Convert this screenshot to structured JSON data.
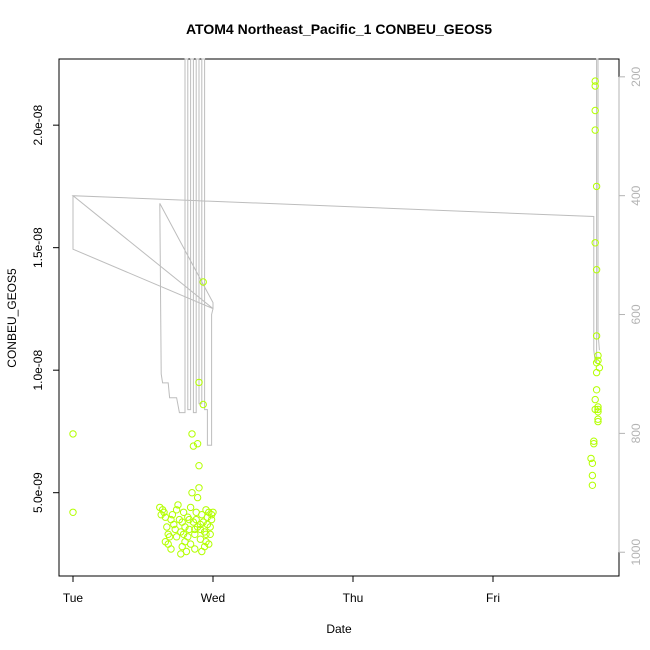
{
  "chart_data": {
    "type": "scatter",
    "title": "ATOM4 Northeast_Pacific_1 CONBEU_GEOS5",
    "xlabel": "Date",
    "ylabel": "CONBEU_GEOS5",
    "x_ticks": [
      "Tue",
      "Wed",
      "Thu",
      "Fri"
    ],
    "y_ticks": [
      "5.0e-09",
      "1.0e-08",
      "1.5e-08",
      "2.0e-08"
    ],
    "y_tick_values": [
      5e-09,
      1e-08,
      1.5e-08,
      2e-08
    ],
    "ylim": [
      1.6e-09,
      2.27e-08
    ],
    "xlim_days": [
      -0.1,
      3.9
    ],
    "right_axis": {
      "ticks": [
        "200",
        "400",
        "600",
        "800",
        "1000"
      ],
      "values": [
        200,
        400,
        600,
        800,
        1000
      ],
      "reversed": true,
      "lim": [
        170,
        1040
      ],
      "color": "#b3b3b3"
    },
    "grid": false,
    "legend": "none",
    "colors": {
      "points": "#b3ff00",
      "line": "#bdbdbd",
      "axes": "#000000"
    },
    "series": [
      {
        "kind": "points",
        "points": [
          [
            0.0,
            7.4e-09
          ],
          [
            0.0,
            4.2e-09
          ],
          [
            0.62,
            4.4e-09
          ],
          [
            0.63,
            4.1e-09
          ],
          [
            0.64,
            4.3e-09
          ],
          [
            0.65,
            4.2e-09
          ],
          [
            0.66,
            4e-09
          ],
          [
            0.67,
            3.6e-09
          ],
          [
            0.68,
            3.3e-09
          ],
          [
            0.68,
            2.9e-09
          ],
          [
            0.69,
            3.2e-09
          ],
          [
            0.7,
            3.9e-09
          ],
          [
            0.71,
            4.1e-09
          ],
          [
            0.72,
            3.7e-09
          ],
          [
            0.73,
            3.5e-09
          ],
          [
            0.74,
            4.3e-09
          ],
          [
            0.75,
            4.5e-09
          ],
          [
            0.76,
            3.9e-09
          ],
          [
            0.77,
            3.4e-09
          ],
          [
            0.77,
            2.5e-09
          ],
          [
            0.78,
            2.8e-09
          ],
          [
            0.78,
            3.8e-09
          ],
          [
            0.79,
            4.2e-09
          ],
          [
            0.8,
            3.6e-09
          ],
          [
            0.8,
            3e-09
          ],
          [
            0.81,
            2.6e-09
          ],
          [
            0.82,
            3.2e-09
          ],
          [
            0.82,
            4e-09
          ],
          [
            0.83,
            3.5e-09
          ],
          [
            0.84,
            2.9e-09
          ],
          [
            0.84,
            4.4e-09
          ],
          [
            0.85,
            5e-09
          ],
          [
            0.85,
            7.4e-09
          ],
          [
            0.86,
            6.9e-09
          ],
          [
            0.86,
            3.8e-09
          ],
          [
            0.87,
            3.3e-09
          ],
          [
            0.87,
            2.7e-09
          ],
          [
            0.88,
            3.9e-09
          ],
          [
            0.88,
            4.2e-09
          ],
          [
            0.89,
            3.6e-09
          ],
          [
            0.89,
            4.8e-09
          ],
          [
            0.89,
            7e-09
          ],
          [
            0.9,
            6.1e-09
          ],
          [
            0.9,
            9.5e-09
          ],
          [
            0.9,
            5.2e-09
          ],
          [
            0.91,
            3.7e-09
          ],
          [
            0.91,
            3.1e-09
          ],
          [
            0.92,
            2.6e-09
          ],
          [
            0.92,
            4.1e-09
          ],
          [
            0.93,
            3.8e-09
          ],
          [
            0.93,
            1.36e-08
          ],
          [
            0.93,
            8.6e-09
          ],
          [
            0.94,
            3.4e-09
          ],
          [
            0.94,
            2.8e-09
          ],
          [
            0.95,
            4.3e-09
          ],
          [
            0.95,
            3e-09
          ],
          [
            0.96,
            3.7e-09
          ],
          [
            0.96,
            4e-09
          ],
          [
            0.97,
            2.9e-09
          ],
          [
            0.97,
            4.2e-09
          ],
          [
            0.98,
            3.3e-09
          ],
          [
            0.98,
            3.6e-09
          ],
          [
            0.99,
            4.1e-09
          ],
          [
            0.99,
            3.9e-09
          ],
          [
            1.0,
            4.2e-09
          ],
          [
            0.66,
            3e-09
          ],
          [
            0.7,
            2.7e-09
          ],
          [
            0.74,
            3.2e-09
          ],
          [
            0.79,
            3.3e-09
          ],
          [
            0.83,
            3.9e-09
          ],
          [
            0.87,
            3.5e-09
          ],
          [
            0.91,
            3.5e-09
          ],
          [
            0.95,
            3.3e-09
          ],
          [
            3.7,
            6.4e-09
          ],
          [
            3.71,
            5.7e-09
          ],
          [
            3.71,
            6.2e-09
          ],
          [
            3.71,
            5.3e-09
          ],
          [
            3.72,
            7e-09
          ],
          [
            3.72,
            7.1e-09
          ],
          [
            3.73,
            8.4e-09
          ],
          [
            3.73,
            8.8e-09
          ],
          [
            3.73,
            1.52e-08
          ],
          [
            3.73,
            2.06e-08
          ],
          [
            3.73,
            2.18e-08
          ],
          [
            3.73,
            2.16e-08
          ],
          [
            3.73,
            1.98e-08
          ],
          [
            3.74,
            1.75e-08
          ],
          [
            3.74,
            1.41e-08
          ],
          [
            3.74,
            1.14e-08
          ],
          [
            3.74,
            1.03e-08
          ],
          [
            3.74,
            9.9e-09
          ],
          [
            3.74,
            9.2e-09
          ],
          [
            3.75,
            8.5e-09
          ],
          [
            3.75,
            8e-09
          ],
          [
            3.75,
            7.9e-09
          ],
          [
            3.75,
            8.3e-09
          ],
          [
            3.75,
            8.4e-09
          ],
          [
            3.75,
            1.06e-08
          ],
          [
            3.75,
            1.04e-08
          ],
          [
            3.76,
            1.01e-08
          ]
        ]
      },
      {
        "kind": "line",
        "axis": "right",
        "points": [
          [
            0.0,
            400
          ],
          [
            0.0,
            490
          ],
          [
            1.0,
            590
          ],
          [
            1.0,
            580
          ],
          [
            0.62,
            413
          ],
          [
            0.63,
            700
          ],
          [
            0.64,
            715
          ],
          [
            0.68,
            715
          ],
          [
            0.69,
            740
          ],
          [
            0.74,
            740
          ],
          [
            0.76,
            765
          ],
          [
            0.79,
            765
          ],
          [
            0.8,
            765
          ],
          [
            0.8,
            170
          ],
          [
            0.82,
            170
          ],
          [
            0.82,
            760
          ],
          [
            0.84,
            760
          ],
          [
            0.84,
            170
          ],
          [
            0.86,
            170
          ],
          [
            0.86,
            765
          ],
          [
            0.88,
            765
          ],
          [
            0.88,
            170
          ],
          [
            0.9,
            170
          ],
          [
            0.9,
            750
          ],
          [
            0.92,
            750
          ],
          [
            0.92,
            170
          ],
          [
            0.94,
            170
          ],
          [
            0.94,
            760
          ],
          [
            0.96,
            760
          ],
          [
            0.96,
            820
          ],
          [
            0.99,
            820
          ],
          [
            0.99,
            600
          ],
          [
            1.0,
            590
          ],
          [
            0.0,
            400
          ],
          [
            3.72,
            435
          ],
          [
            3.72,
            660
          ],
          [
            3.73,
            680
          ],
          [
            3.74,
            680
          ],
          [
            3.74,
            170
          ],
          [
            3.75,
            170
          ],
          [
            3.75,
            630
          ],
          [
            3.76,
            660
          ]
        ]
      }
    ]
  }
}
